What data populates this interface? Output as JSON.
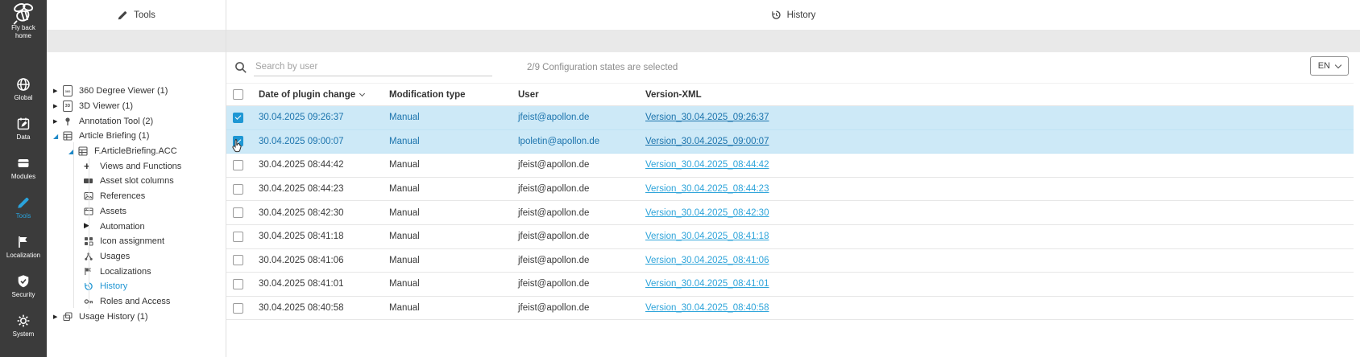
{
  "sidebar": {
    "logo_label": "Fly back home",
    "items": [
      {
        "label": "Global",
        "icon": "globe",
        "active": false
      },
      {
        "label": "Data",
        "icon": "calendar",
        "active": false
      },
      {
        "label": "Modules",
        "icon": "modules",
        "active": false
      },
      {
        "label": "Tools",
        "icon": "pencil",
        "active": true
      },
      {
        "label": "Localization",
        "icon": "flag",
        "active": false
      },
      {
        "label": "Security",
        "icon": "shield",
        "active": false
      },
      {
        "label": "System",
        "icon": "gear",
        "active": false
      }
    ]
  },
  "tree_panel": {
    "header": "Tools",
    "items": [
      {
        "level": 0,
        "arrow": "collapsed",
        "icon": "doc360",
        "label": "360 Degree Viewer (1)",
        "active": false
      },
      {
        "level": 0,
        "arrow": "collapsed",
        "icon": "doc3d",
        "label": "3D Viewer (1)",
        "active": false
      },
      {
        "level": 0,
        "arrow": "collapsed",
        "icon": "pin",
        "label": "Annotation Tool (2)",
        "active": false
      },
      {
        "level": 0,
        "arrow": "expanded",
        "icon": "grid",
        "label": "Article Briefing (1)",
        "active": false
      },
      {
        "level": 1,
        "arrow": "expanded",
        "icon": "grid",
        "label": "F.ArticleBriefing.ACC",
        "active": false
      },
      {
        "level": 2,
        "arrow": null,
        "icon": "plus",
        "label": "Views and Functions",
        "active": false
      },
      {
        "level": 2,
        "arrow": null,
        "icon": "bar",
        "label": "Asset slot columns",
        "active": false
      },
      {
        "level": 2,
        "arrow": null,
        "icon": "imgref",
        "label": "References",
        "active": false
      },
      {
        "level": 2,
        "arrow": null,
        "icon": "imgasset",
        "label": "Assets",
        "active": false
      },
      {
        "level": 2,
        "arrow": null,
        "icon": "play",
        "label": "Automation",
        "active": false
      },
      {
        "level": 2,
        "arrow": null,
        "icon": "icongrid",
        "label": "Icon assignment",
        "active": false
      },
      {
        "level": 2,
        "arrow": null,
        "icon": "share",
        "label": "Usages",
        "active": false
      },
      {
        "level": 2,
        "arrow": null,
        "icon": "flagsm",
        "label": "Localizations",
        "active": false
      },
      {
        "level": 2,
        "arrow": null,
        "icon": "history",
        "label": "History",
        "active": true
      },
      {
        "level": 2,
        "arrow": null,
        "icon": "key",
        "label": "Roles and Access",
        "active": false
      },
      {
        "level": 0,
        "arrow": "collapsed",
        "icon": "copy",
        "label": "Usage History (1)",
        "active": false
      }
    ]
  },
  "main": {
    "header": "History",
    "toolbar": {
      "search_placeholder": "Search by user",
      "search_value": "",
      "selection_status": "2/9 Configuration states are selected",
      "language": "EN"
    },
    "table": {
      "columns": [
        "Date of plugin change",
        "Modification type",
        "User",
        "Version-XML"
      ],
      "sorted_column": "Date of plugin change",
      "rows": [
        {
          "checked": true,
          "date": "30.04.2025 09:26:37",
          "type": "Manual",
          "user": "jfeist@apollon.de",
          "version": "Version_30.04.2025_09:26:37"
        },
        {
          "checked": true,
          "date": "30.04.2025 09:00:07",
          "type": "Manual",
          "user": "lpoletin@apollon.de",
          "version": "Version_30.04.2025_09:00:07"
        },
        {
          "checked": false,
          "date": "30.04.2025 08:44:42",
          "type": "Manual",
          "user": "jfeist@apollon.de",
          "version": "Version_30.04.2025_08:44:42"
        },
        {
          "checked": false,
          "date": "30.04.2025 08:44:23",
          "type": "Manual",
          "user": "jfeist@apollon.de",
          "version": "Version_30.04.2025_08:44:23"
        },
        {
          "checked": false,
          "date": "30.04.2025 08:42:30",
          "type": "Manual",
          "user": "jfeist@apollon.de",
          "version": "Version_30.04.2025_08:42:30"
        },
        {
          "checked": false,
          "date": "30.04.2025 08:41:18",
          "type": "Manual",
          "user": "jfeist@apollon.de",
          "version": "Version_30.04.2025_08:41:18"
        },
        {
          "checked": false,
          "date": "30.04.2025 08:41:06",
          "type": "Manual",
          "user": "jfeist@apollon.de",
          "version": "Version_30.04.2025_08:41:06"
        },
        {
          "checked": false,
          "date": "30.04.2025 08:41:01",
          "type": "Manual",
          "user": "jfeist@apollon.de",
          "version": "Version_30.04.2025_08:41:01"
        },
        {
          "checked": false,
          "date": "30.04.2025 08:40:58",
          "type": "Manual",
          "user": "jfeist@apollon.de",
          "version": "Version_30.04.2025_08:40:58"
        }
      ]
    }
  },
  "colors": {
    "accent_blue": "#2196d3",
    "selected_row_bg": "#cde9f7",
    "selected_row_text": "#1c74ad",
    "link_blue": "#2ea4da",
    "sidebar_bg": "#3b3b3b",
    "band_gray": "#e9e9e9"
  }
}
